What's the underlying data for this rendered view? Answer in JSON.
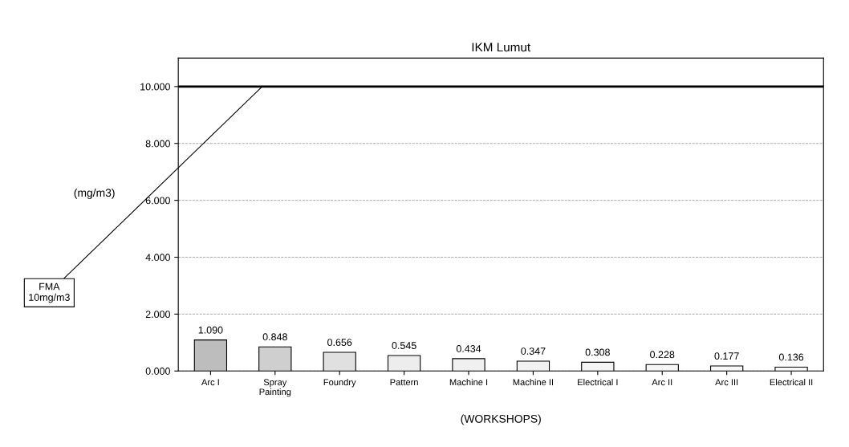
{
  "chart_data": {
    "type": "bar",
    "title": "IKM Lumut",
    "xlabel": "(WORKSHOPS)",
    "ylabel": "(mg/m3)",
    "categories": [
      "Arc I",
      "Spray\nPainting",
      "Foundry",
      "Pattern",
      "Machine I",
      "Machine II",
      "Electrical I",
      "Arc II",
      "Arc III",
      "Electrical II"
    ],
    "values": [
      1.09,
      0.848,
      0.656,
      0.545,
      0.434,
      0.347,
      0.308,
      0.228,
      0.177,
      0.136
    ],
    "value_labels": [
      "1.090",
      "0.848",
      "0.656",
      "0.545",
      "0.434",
      "0.347",
      "0.308",
      "0.228",
      "0.177",
      "0.136"
    ],
    "colors": [
      "#bdbdbd",
      "#cfcfcf",
      "#e0e0e0",
      "#ededed",
      "#f0f0f0",
      "#f2f2f2",
      "#f4f4f4",
      "#f6f6f6",
      "#f8f8f8",
      "#fafafa"
    ],
    "ylim": [
      0,
      11
    ],
    "yticks": [
      {
        "value": 0,
        "label": "0.000"
      },
      {
        "value": 2,
        "label": "2.000"
      },
      {
        "value": 4,
        "label": "4.000"
      },
      {
        "value": 6,
        "label": "6.000"
      },
      {
        "value": 8,
        "label": "8.000"
      },
      {
        "value": 10,
        "label": "10.000"
      }
    ],
    "ref_lines": [
      {
        "axis": "y",
        "value": 10,
        "label": "FMA\n10mg/m3",
        "color": "#000000"
      }
    ],
    "grid": "y"
  }
}
